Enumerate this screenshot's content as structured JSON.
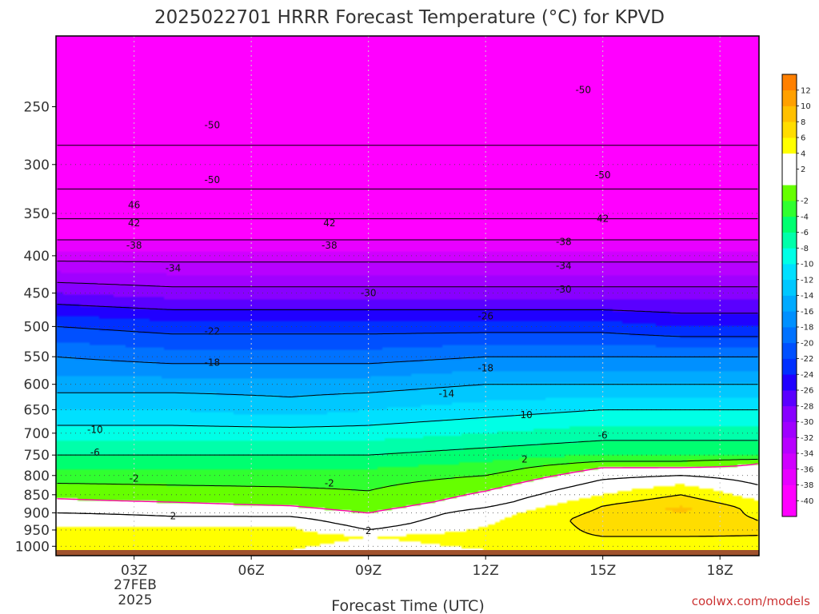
{
  "chart_data": {
    "type": "contour",
    "title": "2025022701 HRRR Forecast Temperature (°C) for KPVD",
    "xlabel": "Forecast Time (UTC)",
    "ylabel": "",
    "x_hours": [
      1,
      19
    ],
    "x_ticks": [
      {
        "hour": 3,
        "label": "03Z"
      },
      {
        "hour": 6,
        "label": "06Z"
      },
      {
        "hour": 9,
        "label": "09Z"
      },
      {
        "hour": 12,
        "label": "12Z"
      },
      {
        "hour": 15,
        "label": "15Z"
      },
      {
        "hour": 18,
        "label": "18Z"
      }
    ],
    "date_label": [
      "27FEB",
      "2025"
    ],
    "y_pressure_range": [
      200,
      1030
    ],
    "y_ticks": [
      250,
      300,
      350,
      400,
      450,
      500,
      550,
      600,
      650,
      700,
      750,
      800,
      850,
      900,
      950,
      1000
    ],
    "y_ticks_labels": [
      "250",
      "300",
      "350",
      "400",
      "450",
      "500",
      "550",
      "600",
      "650",
      "700",
      "750",
      "800",
      "850",
      "900",
      "950",
      "1000"
    ],
    "dotted_grid_levels": [
      300,
      350,
      400,
      450,
      500,
      550,
      600,
      650,
      700,
      750,
      800,
      850,
      900,
      950,
      1000
    ],
    "surface_pressure_hpa": 1012,
    "colorbar": {
      "min": -42,
      "max": 14,
      "step": 2,
      "labels": [
        "12",
        "10",
        "8",
        "6",
        "4",
        "2",
        "-2",
        "-4",
        "-6",
        "-8",
        "-10",
        "-12",
        "-14",
        "-16",
        "-18",
        "-20",
        "-22",
        "-24",
        "-26",
        "-28",
        "-30",
        "-32",
        "-34",
        "-36",
        "-38",
        "-40"
      ],
      "stops": [
        {
          "t": -42,
          "color": "#ff00ff"
        },
        {
          "t": -40,
          "color": "#ff00ff"
        },
        {
          "t": -38,
          "color": "#e800ff"
        },
        {
          "t": -36,
          "color": "#d000ff"
        },
        {
          "t": -34,
          "color": "#b800ff"
        },
        {
          "t": -32,
          "color": "#a000ff"
        },
        {
          "t": -30,
          "color": "#8800ff"
        },
        {
          "t": -28,
          "color": "#5a00ff"
        },
        {
          "t": -26,
          "color": "#2000ff"
        },
        {
          "t": -24,
          "color": "#0030ff"
        },
        {
          "t": -22,
          "color": "#0050ff"
        },
        {
          "t": -20,
          "color": "#0072ff"
        },
        {
          "t": -18,
          "color": "#0090ff"
        },
        {
          "t": -16,
          "color": "#00aaff"
        },
        {
          "t": -14,
          "color": "#00c8ff"
        },
        {
          "t": -12,
          "color": "#00e0ff"
        },
        {
          "t": -10,
          "color": "#00ffe6"
        },
        {
          "t": -8,
          "color": "#00ffaa"
        },
        {
          "t": -6,
          "color": "#00ff70"
        },
        {
          "t": -4,
          "color": "#30ff30"
        },
        {
          "t": -2,
          "color": "#66ff00"
        },
        {
          "t": 0,
          "color": "#ffffff"
        },
        {
          "t": 2,
          "color": "#ffffff"
        },
        {
          "t": 4,
          "color": "#ffff00"
        },
        {
          "t": 6,
          "color": "#ffdd00"
        },
        {
          "t": 8,
          "color": "#ffc000"
        },
        {
          "t": 10,
          "color": "#ffa000"
        },
        {
          "t": 12,
          "color": "#ff8000"
        },
        {
          "t": 14,
          "color": "#ff6000"
        }
      ]
    },
    "temperature_profiles": [
      {
        "hour": 1,
        "points": [
          [
            1012,
            4
          ],
          [
            970,
            5
          ],
          [
            940,
            4
          ],
          [
            910,
            3
          ],
          [
            890,
            1
          ],
          [
            860,
            0
          ],
          [
            840,
            -1
          ],
          [
            800,
            -3
          ],
          [
            750,
            -6
          ],
          [
            700,
            -9
          ],
          [
            650,
            -12
          ],
          [
            600,
            -15
          ],
          [
            550,
            -18
          ],
          [
            500,
            -22
          ],
          [
            450,
            -28
          ],
          [
            400,
            -35
          ],
          [
            350,
            -43
          ],
          [
            300,
            -49
          ],
          [
            250,
            -52
          ],
          [
            220,
            -54
          ],
          [
            200,
            -55
          ]
        ]
      },
      {
        "hour": 4,
        "points": [
          [
            1012,
            4
          ],
          [
            970,
            5
          ],
          [
            940,
            4
          ],
          [
            910,
            2
          ],
          [
            895,
            1
          ],
          [
            870,
            0
          ],
          [
            850,
            -1
          ],
          [
            800,
            -3
          ],
          [
            750,
            -6
          ],
          [
            700,
            -9
          ],
          [
            650,
            -12
          ],
          [
            600,
            -15
          ],
          [
            550,
            -19
          ],
          [
            500,
            -23
          ],
          [
            450,
            -29
          ],
          [
            400,
            -35
          ],
          [
            350,
            -43
          ],
          [
            300,
            -49
          ],
          [
            250,
            -52
          ],
          [
            200,
            -55
          ]
        ]
      },
      {
        "hour": 7,
        "points": [
          [
            1012,
            4
          ],
          [
            970,
            5
          ],
          [
            940,
            4
          ],
          [
            910,
            2
          ],
          [
            900,
            1
          ],
          [
            880,
            0
          ],
          [
            860,
            -1
          ],
          [
            800,
            -3
          ],
          [
            750,
            -6
          ],
          [
            700,
            -9
          ],
          [
            650,
            -13
          ],
          [
            600,
            -15
          ],
          [
            550,
            -19
          ],
          [
            500,
            -23
          ],
          [
            450,
            -29
          ],
          [
            400,
            -35
          ],
          [
            350,
            -43
          ],
          [
            300,
            -49
          ],
          [
            250,
            -52
          ],
          [
            200,
            -55
          ]
        ]
      },
      {
        "hour": 9,
        "points": [
          [
            1012,
            3
          ],
          [
            970,
            4
          ],
          [
            950,
            2
          ],
          [
            930,
            1
          ],
          [
            900,
            0
          ],
          [
            880,
            -1
          ],
          [
            860,
            -1.5
          ],
          [
            800,
            -3
          ],
          [
            750,
            -6
          ],
          [
            700,
            -9
          ],
          [
            650,
            -12
          ],
          [
            600,
            -15
          ],
          [
            550,
            -19
          ],
          [
            500,
            -23
          ],
          [
            450,
            -29
          ],
          [
            400,
            -35
          ],
          [
            350,
            -43
          ],
          [
            300,
            -49
          ],
          [
            250,
            -52
          ],
          [
            200,
            -55
          ]
        ]
      },
      {
        "hour": 12,
        "points": [
          [
            1012,
            4
          ],
          [
            970,
            5
          ],
          [
            940,
            4
          ],
          [
            900,
            3
          ],
          [
            870,
            1
          ],
          [
            840,
            0
          ],
          [
            800,
            -2
          ],
          [
            750,
            -5
          ],
          [
            700,
            -8
          ],
          [
            650,
            -11
          ],
          [
            600,
            -14
          ],
          [
            550,
            -18
          ],
          [
            500,
            -23
          ],
          [
            450,
            -29
          ],
          [
            400,
            -35
          ],
          [
            350,
            -43
          ],
          [
            300,
            -49
          ],
          [
            250,
            -52
          ],
          [
            200,
            -55
          ]
        ]
      },
      {
        "hour": 15,
        "points": [
          [
            1012,
            5
          ],
          [
            970,
            6
          ],
          [
            920,
            7
          ],
          [
            880,
            6
          ],
          [
            850,
            4
          ],
          [
            810,
            2
          ],
          [
            780,
            0
          ],
          [
            750,
            -4
          ],
          [
            700,
            -7
          ],
          [
            650,
            -10
          ],
          [
            600,
            -14
          ],
          [
            550,
            -18
          ],
          [
            500,
            -23
          ],
          [
            450,
            -29
          ],
          [
            400,
            -35
          ],
          [
            350,
            -43
          ],
          [
            300,
            -49
          ],
          [
            250,
            -52
          ],
          [
            200,
            -55
          ]
        ]
      },
      {
        "hour": 17,
        "points": [
          [
            1012,
            5
          ],
          [
            970,
            6
          ],
          [
            920,
            7
          ],
          [
            890,
            8.5
          ],
          [
            850,
            6
          ],
          [
            810,
            3
          ],
          [
            780,
            0
          ],
          [
            750,
            -4
          ],
          [
            700,
            -7
          ],
          [
            650,
            -10
          ],
          [
            600,
            -14
          ],
          [
            550,
            -18
          ],
          [
            500,
            -24
          ],
          [
            450,
            -29
          ],
          [
            400,
            -35
          ],
          [
            350,
            -43
          ],
          [
            300,
            -49
          ],
          [
            250,
            -52
          ],
          [
            200,
            -55
          ]
        ]
      },
      {
        "hour": 19,
        "points": [
          [
            1012,
            5
          ],
          [
            970,
            6
          ],
          [
            920,
            6
          ],
          [
            880,
            5
          ],
          [
            850,
            3
          ],
          [
            800,
            1
          ],
          [
            770,
            0
          ],
          [
            750,
            -4
          ],
          [
            700,
            -7
          ],
          [
            650,
            -10
          ],
          [
            600,
            -14
          ],
          [
            550,
            -18
          ],
          [
            500,
            -24
          ],
          [
            450,
            -29
          ],
          [
            400,
            -35
          ],
          [
            350,
            -43
          ],
          [
            300,
            -49
          ],
          [
            250,
            -52
          ],
          [
            200,
            -55
          ]
        ]
      }
    ],
    "contour_levels": [
      -50,
      -46,
      -42,
      -38,
      -34,
      -30,
      -26,
      -22,
      -18,
      -14,
      -10,
      -6,
      -2,
      2,
      6
    ],
    "zero_line_color": "#ff00aa",
    "contour_labels": [
      {
        "text": "-50",
        "hour": 5,
        "p": 265
      },
      {
        "text": "-50",
        "hour": 5,
        "p": 315
      },
      {
        "text": "-50",
        "hour": 14.5,
        "p": 237
      },
      {
        "text": "-50",
        "hour": 15,
        "p": 310
      },
      {
        "text": "46",
        "hour": 3,
        "p": 341
      },
      {
        "text": "42",
        "hour": 3,
        "p": 361
      },
      {
        "text": "42",
        "hour": 8,
        "p": 361
      },
      {
        "text": "42",
        "hour": 15,
        "p": 356
      },
      {
        "text": "-38",
        "hour": 3,
        "p": 387
      },
      {
        "text": "-38",
        "hour": 8,
        "p": 387
      },
      {
        "text": "-38",
        "hour": 14,
        "p": 383
      },
      {
        "text": "-34",
        "hour": 4,
        "p": 416
      },
      {
        "text": "-34",
        "hour": 14,
        "p": 413
      },
      {
        "text": "-30",
        "hour": 9,
        "p": 450
      },
      {
        "text": "-30",
        "hour": 14,
        "p": 445
      },
      {
        "text": "-26",
        "hour": 12,
        "p": 484
      },
      {
        "text": "-22",
        "hour": 5,
        "p": 508
      },
      {
        "text": "-18",
        "hour": 5,
        "p": 560
      },
      {
        "text": "-18",
        "hour": 12,
        "p": 570
      },
      {
        "text": "-14",
        "hour": 11,
        "p": 618
      },
      {
        "text": "-10",
        "hour": 2,
        "p": 692
      },
      {
        "text": "-10",
        "hour": 13,
        "p": 661
      },
      {
        "text": "-6",
        "hour": 2,
        "p": 744
      },
      {
        "text": "-6",
        "hour": 15,
        "p": 705
      },
      {
        "text": "-2",
        "hour": 3,
        "p": 808
      },
      {
        "text": "-2",
        "hour": 8,
        "p": 820
      },
      {
        "text": "2",
        "hour": 13,
        "p": 760
      },
      {
        "text": "2",
        "hour": 4,
        "p": 909
      },
      {
        "text": "2",
        "hour": 9,
        "p": 953
      }
    ],
    "credit": "coolwx.com/models"
  }
}
